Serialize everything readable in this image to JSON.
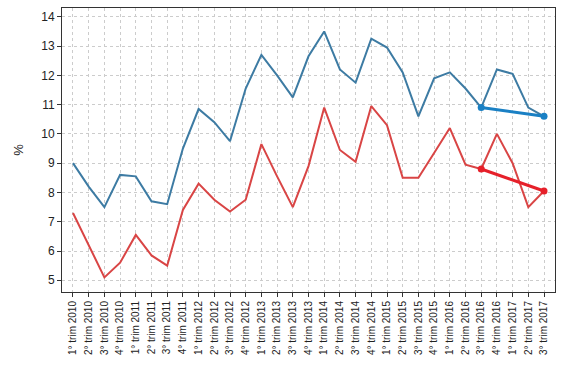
{
  "chart_data": {
    "type": "line",
    "y_label": "%",
    "categories": [
      "1° trim 2010",
      "2° trim 2010",
      "3° trim 2010",
      "4° trim 2010",
      "1° trim 2011",
      "2° trim 2011",
      "3° trim 2011",
      "4° trim 2011",
      "1° trim 2012",
      "2° trim 2012",
      "3° trim 2012",
      "4° trim 2012",
      "1° trim 2013",
      "2° trim 2013",
      "3° trim 2013",
      "4° trim 2013",
      "1° trim 2014",
      "2° trim 2014",
      "3° trim 2014",
      "4° trim 2014",
      "1° trim 2015",
      "2° trim 2015",
      "3° trim 2015",
      "4° trim 2015",
      "1° trim 2016",
      "2° trim 2016",
      "3° trim 2016",
      "4° trim 2016",
      "1° trim 2017",
      "2° trim 2017",
      "3° trim 2017"
    ],
    "series": [
      {
        "color": "#3d7ba3",
        "marker": "none",
        "line_style": "solid",
        "values": [
          9.0,
          8.2,
          7.5,
          8.6,
          8.55,
          7.7,
          7.6,
          9.5,
          10.85,
          10.4,
          9.75,
          11.55,
          12.7,
          12.0,
          11.25,
          12.65,
          13.5,
          12.2,
          11.75,
          13.25,
          12.95,
          12.1,
          10.6,
          11.9,
          12.1,
          11.55,
          10.9,
          12.2,
          12.05,
          10.9,
          10.6
        ]
      },
      {
        "color": "#d94545",
        "marker": "none",
        "line_style": "solid",
        "values": [
          7.3,
          6.2,
          5.1,
          5.6,
          6.55,
          5.85,
          5.5,
          7.4,
          8.3,
          7.75,
          7.35,
          7.75,
          9.65,
          8.55,
          7.5,
          8.9,
          10.9,
          9.45,
          9.05,
          10.95,
          10.3,
          8.5,
          8.5,
          9.35,
          10.2,
          8.95,
          8.8,
          10.0,
          9.0,
          7.5,
          8.05
        ]
      },
      {
        "color": "#1a80c4",
        "marker": "circle",
        "line_style": "bold",
        "values": [
          null,
          null,
          null,
          null,
          null,
          null,
          null,
          null,
          null,
          null,
          null,
          null,
          null,
          null,
          null,
          null,
          null,
          null,
          null,
          null,
          null,
          null,
          null,
          null,
          null,
          null,
          10.9,
          null,
          null,
          null,
          10.6
        ]
      },
      {
        "color": "#e6202a",
        "marker": "circle",
        "line_style": "bold",
        "values": [
          null,
          null,
          null,
          null,
          null,
          null,
          null,
          null,
          null,
          null,
          null,
          null,
          null,
          null,
          null,
          null,
          null,
          null,
          null,
          null,
          null,
          null,
          null,
          null,
          null,
          null,
          8.8,
          null,
          null,
          null,
          8.05
        ]
      }
    ],
    "ylim": [
      4.6,
      14.3
    ],
    "yticks": [
      5,
      6,
      7,
      8,
      9,
      10,
      11,
      12,
      13,
      14
    ],
    "grid": true
  }
}
